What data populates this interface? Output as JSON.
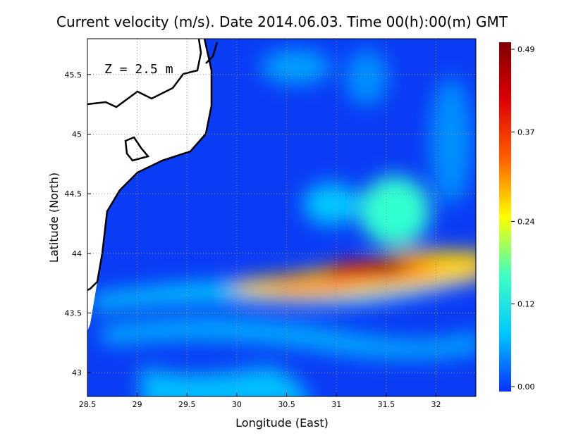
{
  "chart_data": {
    "type": "heatmap",
    "title": "Current velocity (m/s). Date 2014.06.03. Time 00(h):00(m) GMT",
    "annotation": "Z = 2.5 m",
    "x_label": "Longitude (East)",
    "y_label": "Latitude (North)",
    "xlim": [
      28.5,
      32.4
    ],
    "ylim": [
      42.8,
      45.8
    ],
    "xticks": [
      28.5,
      29,
      29.5,
      30,
      30.5,
      31,
      31.5,
      32
    ],
    "yticks": [
      43,
      43.5,
      44,
      44.5,
      45,
      45.5
    ],
    "grid": true,
    "colorbar": {
      "lim": [
        0,
        0.49
      ],
      "ticks": [
        {
          "value": 0,
          "label": "0.00"
        },
        {
          "value": 0.12,
          "label": "0.12"
        },
        {
          "value": 0.24,
          "label": "0.24"
        },
        {
          "value": 0.37,
          "label": "0.37"
        },
        {
          "value": 0.49,
          "label": "0.49"
        }
      ],
      "colors": [
        "#0a30ff",
        "#00c8ff",
        "#3fffc0",
        "#ffff00",
        "#ff6000",
        "#e00000",
        "#800000"
      ]
    }
  }
}
